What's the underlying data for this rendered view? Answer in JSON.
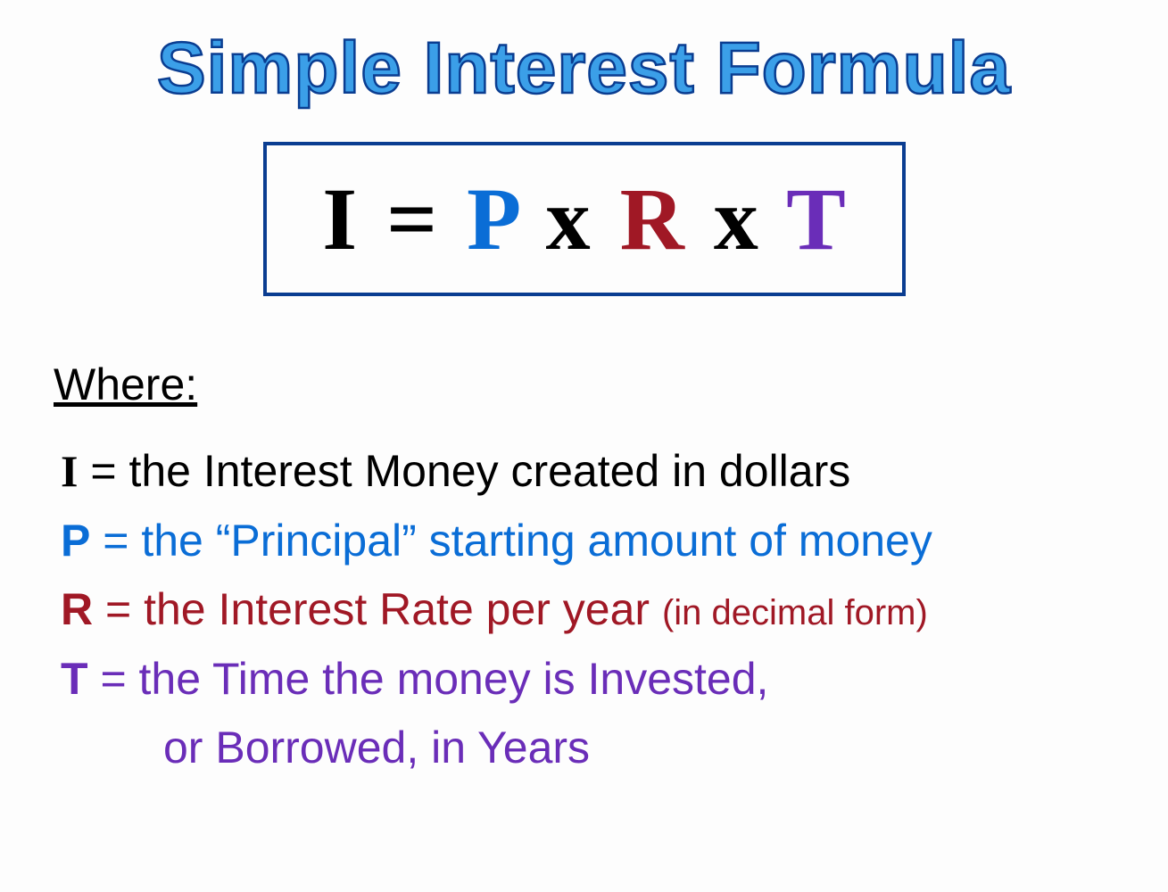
{
  "title": "Simple Interest Formula",
  "title_color": "#3b9fe8",
  "title_stroke_color": "#0a3d91",
  "title_fontsize": 82,
  "formula": {
    "box_border_color": "#0a3d91",
    "box_border_width": 4,
    "fontsize": 100,
    "font_family": "Times New Roman",
    "parts": {
      "I": {
        "text": "I",
        "color": "#000000"
      },
      "equals": {
        "text": "=",
        "color": "#000000"
      },
      "P": {
        "text": "P",
        "color": "#0a6dd6"
      },
      "x1": {
        "text": "x",
        "color": "#000000"
      },
      "R": {
        "text": "R",
        "color": "#a01825"
      },
      "x2": {
        "text": "x",
        "color": "#000000"
      },
      "T": {
        "text": "T",
        "color": "#6a2db8"
      }
    }
  },
  "where": {
    "heading": "Where:",
    "heading_fontsize": 50,
    "definition_fontsize": 50,
    "definitions": {
      "I": {
        "symbol": "I",
        "text": " = the Interest Money created in dollars",
        "color": "#000000"
      },
      "P": {
        "symbol": "P",
        "text": " = the “Principal” starting amount of money",
        "color": "#0a6dd6"
      },
      "R": {
        "symbol": "R",
        "text": " = the Interest Rate per year ",
        "note": "(in decimal form)",
        "color": "#a01825"
      },
      "T": {
        "symbol": "T",
        "text": " = the Time the money is Invested,",
        "text2": "or Borrowed, in Years",
        "color": "#6a2db8"
      }
    }
  },
  "background_color": "#fdfdfd"
}
